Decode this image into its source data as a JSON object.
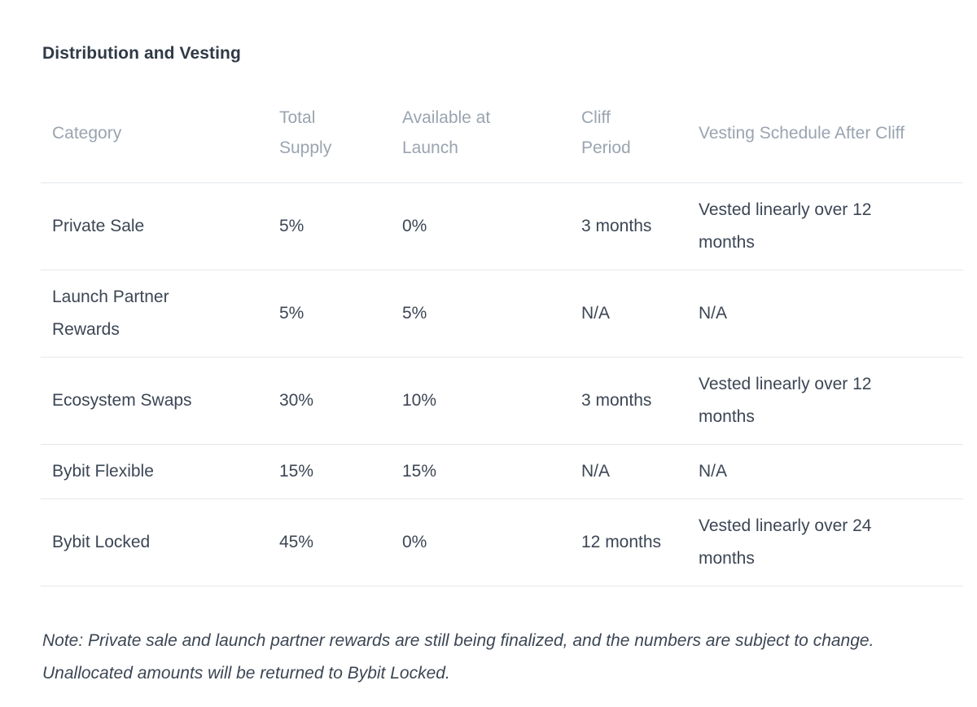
{
  "page": {
    "title": "Distribution and Vesting"
  },
  "table": {
    "columns": [
      {
        "label": "Category"
      },
      {
        "label": "Total Supply"
      },
      {
        "label": "Available at Launch"
      },
      {
        "label": "Cliff Period"
      },
      {
        "label": "Vesting Schedule After Cliff"
      }
    ],
    "rows": [
      {
        "category": "Private Sale",
        "total_supply": "5%",
        "available_at_launch": "0%",
        "cliff_period": "3 months",
        "vesting_schedule": "Vested linearly over 12 months"
      },
      {
        "category": "Launch Partner Rewards",
        "total_supply": "5%",
        "available_at_launch": "5%",
        "cliff_period": "N/A",
        "vesting_schedule": "N/A"
      },
      {
        "category": "Ecosystem Swaps",
        "total_supply": "30%",
        "available_at_launch": "10%",
        "cliff_period": "3 months",
        "vesting_schedule": "Vested linearly over 12 months"
      },
      {
        "category": "Bybit Flexible",
        "total_supply": "15%",
        "available_at_launch": "15%",
        "cliff_period": "N/A",
        "vesting_schedule": "N/A"
      },
      {
        "category": "Bybit Locked",
        "total_supply": "45%",
        "available_at_launch": "0%",
        "cliff_period": "12 months",
        "vesting_schedule": "Vested linearly over 24 months"
      }
    ]
  },
  "note": {
    "text": "Note: Private sale and launch partner rewards are still being finalized, and the numbers are subject to change. Unallocated amounts will be returned to Bybit Locked."
  },
  "colors": {
    "body_text": "#3c4654",
    "header_text": "#9aa4b0",
    "title_text": "#303a46",
    "divider": "#e3e8ec",
    "background": "#ffffff"
  }
}
